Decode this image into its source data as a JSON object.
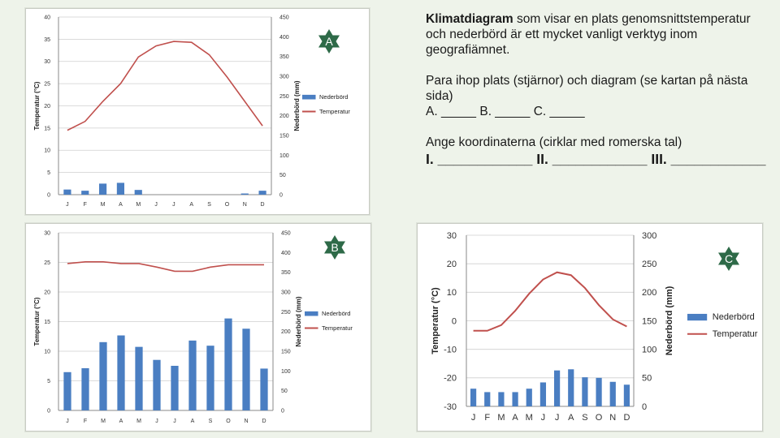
{
  "text": {
    "intro_bold": "Klimatdiagram",
    "intro_rest": " som visar en plats genomsnittstemperatur och nederbörd är ett mycket vanligt verktyg inom geografiämnet.",
    "pair_line1": "Para ihop plats (stjärnor) och diagram (se kartan på nästa sida)",
    "pair_line2": "A.  _____ B. _____ C. _____",
    "coord_line": "Ange koordinaterna (cirklar med romerska tal)",
    "coord_answer": "I. ____________ II. ____________ III. ____________"
  },
  "stars": [
    {
      "label": "A",
      "color": "#2e6a48"
    },
    {
      "label": "B",
      "color": "#2e6a48"
    },
    {
      "label": "C",
      "color": "#2e6a48"
    }
  ],
  "colors": {
    "bar": "#4a7ec2",
    "line": "#c0504d"
  },
  "chart_data": [
    {
      "id": "A",
      "type": "bar+line",
      "categories": [
        "J",
        "F",
        "M",
        "A",
        "M",
        "J",
        "J",
        "A",
        "S",
        "O",
        "N",
        "D"
      ],
      "temp_axis": {
        "label": "Temperatur (°C)",
        "ylim": [
          0,
          40
        ],
        "ticks": [
          0,
          5,
          10,
          15,
          20,
          25,
          30,
          35,
          40
        ]
      },
      "precip_axis": {
        "label": "Nederbörd (mm)",
        "ylim": [
          0,
          450
        ],
        "ticks": [
          0,
          50,
          100,
          150,
          200,
          250,
          300,
          350,
          400,
          450
        ]
      },
      "series": [
        {
          "name": "Nederbörd",
          "type": "bar",
          "values": [
            13,
            10,
            28,
            30,
            12,
            0,
            0,
            0,
            0,
            0,
            3,
            10
          ]
        },
        {
          "name": "Temperatur",
          "type": "line",
          "values": [
            14.5,
            16.5,
            21,
            25,
            31,
            33.5,
            34.5,
            34.3,
            31.5,
            26.5,
            21,
            15.5
          ]
        }
      ],
      "legend": "right"
    },
    {
      "id": "B",
      "type": "bar+line",
      "categories": [
        "J",
        "F",
        "M",
        "A",
        "M",
        "J",
        "J",
        "A",
        "S",
        "O",
        "N",
        "D"
      ],
      "temp_axis": {
        "label": "Temperatur (°C)",
        "ylim": [
          0,
          30
        ],
        "ticks": [
          0,
          5,
          10,
          15,
          20,
          25,
          30
        ]
      },
      "precip_axis": {
        "label": "Nederbörd (mm)",
        "ylim": [
          0,
          450
        ],
        "ticks": [
          0,
          50,
          100,
          150,
          200,
          250,
          300,
          350,
          400,
          450
        ]
      },
      "series": [
        {
          "name": "Nederbörd",
          "type": "bar",
          "values": [
            97,
            107,
            173,
            190,
            161,
            128,
            113,
            177,
            164,
            233,
            207,
            106
          ]
        },
        {
          "name": "Temperatur",
          "type": "line",
          "values": [
            24.8,
            25.1,
            25.1,
            24.8,
            24.8,
            24.2,
            23.5,
            23.5,
            24.2,
            24.6,
            24.6,
            24.6
          ]
        }
      ],
      "legend": "right"
    },
    {
      "id": "C",
      "type": "bar+line",
      "categories": [
        "J",
        "F",
        "M",
        "A",
        "M",
        "J",
        "J",
        "A",
        "S",
        "O",
        "N",
        "D"
      ],
      "temp_axis": {
        "label": "Temperatur (°C)",
        "ylim": [
          -30,
          30
        ],
        "ticks": [
          -30,
          -20,
          -10,
          0,
          10,
          20,
          30
        ]
      },
      "precip_axis": {
        "label": "Nederbörd (mm)",
        "ylim": [
          0,
          300
        ],
        "ticks": [
          0,
          50,
          100,
          150,
          200,
          250,
          300
        ]
      },
      "series": [
        {
          "name": "Nederbörd",
          "type": "bar",
          "values": [
            31,
            25,
            25,
            25,
            31,
            42,
            63,
            65,
            51,
            50,
            43,
            38
          ]
        },
        {
          "name": "Temperatur",
          "type": "line",
          "values": [
            -3.5,
            -3.5,
            -1.5,
            3.5,
            9.5,
            14.5,
            17,
            16,
            11.5,
            5.5,
            0.5,
            -2
          ]
        }
      ],
      "legend": "right"
    }
  ]
}
